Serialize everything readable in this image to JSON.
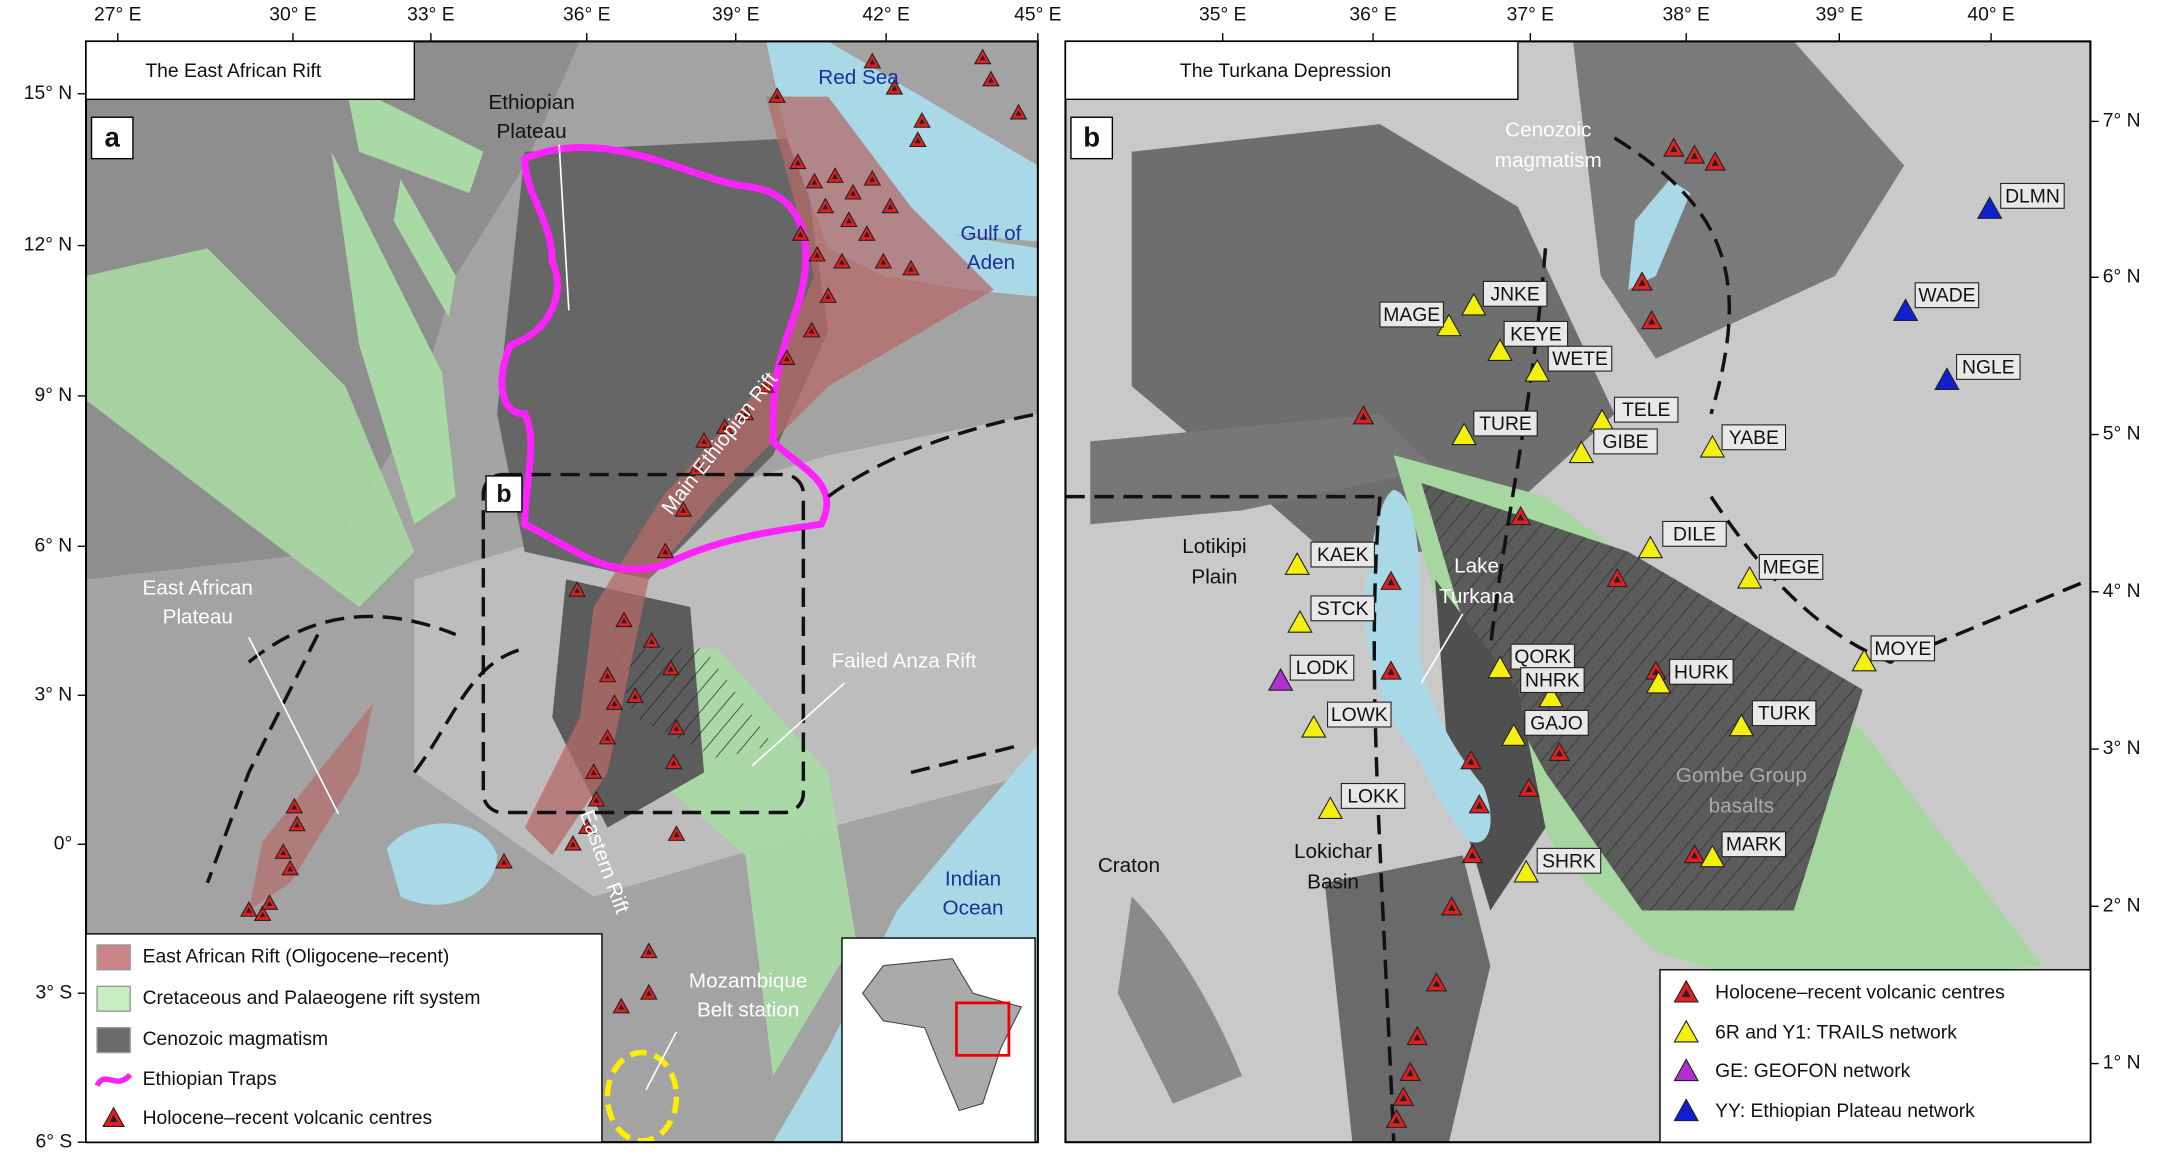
{
  "panel_a": {
    "title": "The East African Rift",
    "label": "a",
    "inset_label": "b",
    "lon_ticks": [
      "27° E",
      "30° E",
      "33° E",
      "36° E",
      "39° E",
      "42° E",
      "45° E"
    ],
    "lat_ticks": [
      "15° N",
      "12° N",
      "9° N",
      "6° N",
      "3° N",
      "0°",
      "3° S",
      "6° S"
    ],
    "annotations": [
      [
        "Ethiopian",
        "Plateau"
      ],
      [
        "Red Sea"
      ],
      [
        "Gulf of",
        "Aden"
      ],
      [
        "Main Ethiopian Rift"
      ],
      [
        "East African",
        "Plateau"
      ],
      [
        "Failed Anza Rift"
      ],
      [
        "Eastern Rift"
      ],
      [
        "Indian",
        "Ocean"
      ],
      [
        "Mozambique",
        "Belt station"
      ]
    ],
    "legend": [
      "East African Rift (Oligocene–recent)",
      "Cretaceous and Palaeogene rift system",
      "Cenozoic magmatism",
      "Ethiopian Traps",
      "Holocene–recent volcanic centres"
    ]
  },
  "panel_b": {
    "title": "The Turkana Depression",
    "label": "b",
    "lon_ticks": [
      "35° E",
      "36° E",
      "37° E",
      "38° E",
      "39° E",
      "40° E"
    ],
    "lat_ticks": [
      "7° N",
      "6° N",
      "5° N",
      "4° N",
      "3° N",
      "2° N",
      "1° N"
    ],
    "annotations": [
      [
        "Cenozoic",
        "magmatism"
      ],
      [
        "Lotikipi",
        "Plain"
      ],
      [
        "Lake",
        "Turkana"
      ],
      [
        "Gombe Group",
        "basalts"
      ],
      [
        "Craton"
      ],
      [
        "Lokichar",
        "Basin"
      ]
    ],
    "stations": [
      "MAGE",
      "JNKE",
      "KEYE",
      "WETE",
      "TURE",
      "TELE",
      "GIBE",
      "YABE",
      "DILE",
      "MEGE",
      "KAEK",
      "STCK",
      "LODK",
      "LOWK",
      "LOKK",
      "QORK",
      "NHRK",
      "GAJO",
      "HURK",
      "TURK",
      "MOYE",
      "SHRK",
      "MARK",
      "DLMN",
      "WADE",
      "NGLE"
    ],
    "legend": [
      "Holocene–recent volcanic centres",
      "6R and Y1: TRAILS network",
      "GE: GEOFON network",
      "YY: Ethiopian Plateau network"
    ]
  }
}
